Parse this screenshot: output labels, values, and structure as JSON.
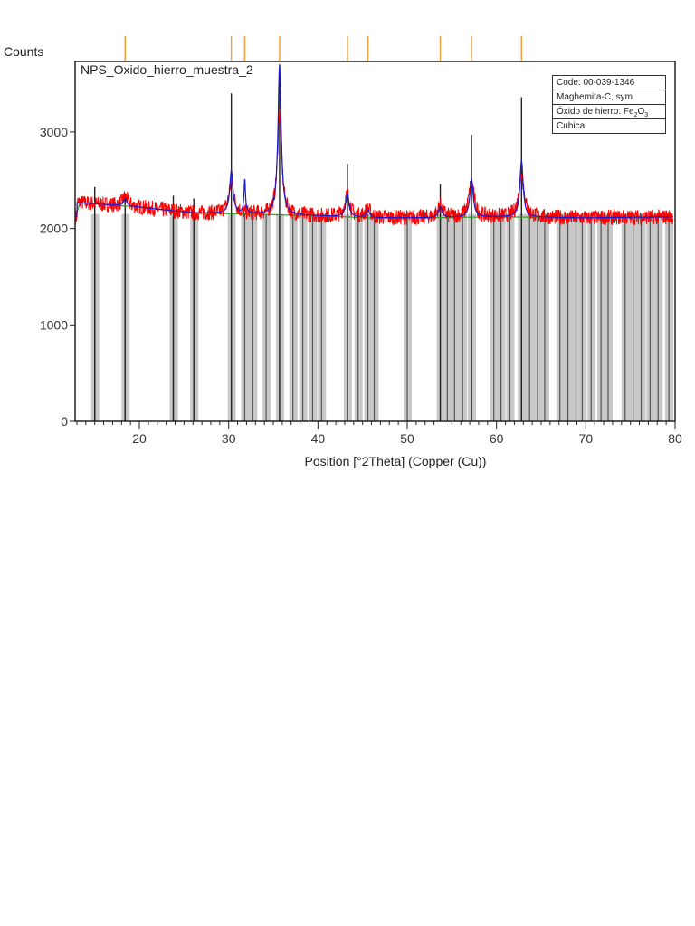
{
  "chart_data": {
    "type": "line",
    "title": "NPS_Oxido_hierro_muestra_2",
    "xlabel": "Position [°2Theta] (Copper (Cu))",
    "ylabel": "Counts",
    "xlim": [
      12.8,
      80
    ],
    "ylim": [
      0,
      3730
    ],
    "x_ticks": [
      20,
      30,
      40,
      50,
      60,
      70,
      80
    ],
    "y_ticks": [
      0,
      1000,
      2000,
      3000
    ],
    "grid": false,
    "legend": {
      "position": "top-right",
      "entries": [
        "Code: 00-039-1346",
        "Maghemita-C, sym",
        "Óxido de hierro: Fe2O3",
        "Cubica"
      ]
    },
    "series": [
      {
        "name": "Observed pattern (red)",
        "color": "#ff0000",
        "background_level": [
          [
            13,
            2270
          ],
          [
            20,
            2220
          ],
          [
            26,
            2160
          ],
          [
            32,
            2150
          ],
          [
            40,
            2130
          ],
          [
            46,
            2110
          ],
          [
            52,
            2110
          ],
          [
            60,
            2120
          ],
          [
            70,
            2110
          ],
          [
            80,
            2120
          ]
        ],
        "peaks": [
          {
            "two_theta": 18.4,
            "counts": 2330
          },
          {
            "two_theta": 30.3,
            "counts": 2480
          },
          {
            "two_theta": 35.7,
            "counts": 3220
          },
          {
            "two_theta": 43.3,
            "counts": 2350
          },
          {
            "two_theta": 45.6,
            "counts": 2200
          },
          {
            "two_theta": 53.7,
            "counts": 2240
          },
          {
            "two_theta": 57.2,
            "counts": 2480
          },
          {
            "two_theta": 62.8,
            "counts": 2560
          }
        ]
      },
      {
        "name": "Calculated profile (blue)",
        "color": "#0000cc",
        "peaks": [
          {
            "two_theta": 18.4,
            "counts": 2310
          },
          {
            "two_theta": 30.3,
            "counts": 2600
          },
          {
            "two_theta": 31.8,
            "counts": 2500
          },
          {
            "two_theta": 35.7,
            "counts": 3680
          },
          {
            "two_theta": 43.3,
            "counts": 2360
          },
          {
            "two_theta": 45.6,
            "counts": 2190
          },
          {
            "two_theta": 53.7,
            "counts": 2230
          },
          {
            "two_theta": 57.2,
            "counts": 2520
          },
          {
            "two_theta": 62.8,
            "counts": 2700
          }
        ]
      },
      {
        "name": "Background (green)",
        "color": "#2ca02c"
      },
      {
        "name": "Reference stick pattern 00-039-1346 (black)",
        "color": "#222222",
        "sticks": [
          {
            "two_theta": 15.0,
            "counts": 2430
          },
          {
            "two_theta": 18.4,
            "counts": 2350
          },
          {
            "two_theta": 23.8,
            "counts": 2340
          },
          {
            "two_theta": 26.1,
            "counts": 2310
          },
          {
            "two_theta": 30.3,
            "counts": 3400
          },
          {
            "two_theta": 35.7,
            "counts": 3700
          },
          {
            "two_theta": 43.3,
            "counts": 2670
          },
          {
            "two_theta": 53.7,
            "counts": 2460
          },
          {
            "two_theta": 57.2,
            "counts": 2970
          },
          {
            "two_theta": 62.8,
            "counts": 3360
          }
        ]
      }
    ],
    "reference_lines_gray": [
      15.0,
      18.4,
      23.8,
      26.1,
      30.3,
      31.8,
      32.7,
      34.2,
      35.7,
      37.2,
      38.3,
      39.4,
      40.4,
      43.3,
      44.5,
      45.6,
      46.3,
      50.0,
      53.7,
      54.5,
      55.3,
      56.2,
      57.2,
      59.7,
      60.5,
      61.5,
      62.8,
      63.7,
      64.6,
      65.4,
      67.1,
      68.0,
      68.9,
      69.6,
      70.6,
      71.7,
      72.5,
      74.4,
      75.3,
      76.2,
      77.2,
      78.1,
      79.3
    ],
    "orange_ticks": [
      18.4,
      30.3,
      31.8,
      35.7,
      43.3,
      45.6,
      53.7,
      57.2,
      62.8
    ]
  },
  "labels": {
    "y_axis_title": "Counts",
    "sample_name": "NPS_Oxido_hierro_muestra_2",
    "x_axis_title": "Position [°2Theta] (Copper (Cu))"
  },
  "legend": {
    "code": "Code: 00-039-1346",
    "name": "Maghemita-C, sym",
    "formula_prefix": "Óxido de hierro: Fe",
    "formula_sub1": "2",
    "formula_mid": "O",
    "formula_sub2": "3",
    "system": "Cubica"
  },
  "colors": {
    "observed": "#ff0000",
    "calculated": "#1a1acc",
    "background": "#2ca02c",
    "sticks": "#222222",
    "ref_bars": "#c8c8c8",
    "orange_ticks": "#f5a040",
    "axis": "#222222"
  }
}
